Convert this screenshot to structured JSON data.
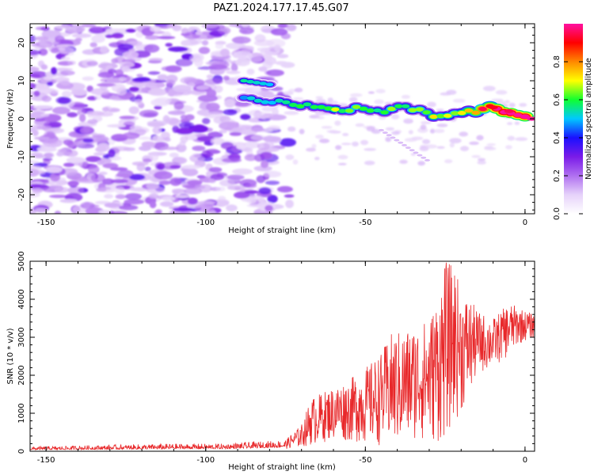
{
  "title": "PAZ1.2024.177.17.45.G07",
  "chart_data": [
    {
      "type": "heatmap",
      "xlabel": "Height of straight line (km)",
      "ylabel": "Frequency (Hz)",
      "xlim": [
        -155,
        3
      ],
      "ylim": [
        -25,
        25
      ],
      "xticks": [
        -150,
        -100,
        -50,
        0
      ],
      "yticks": [
        -20,
        -10,
        0,
        10,
        20
      ],
      "colorbar": {
        "label": "Normalized spectral amplitude",
        "range": [
          0,
          1
        ],
        "ticks": [
          "0.0",
          "0.2",
          "0.4",
          "0.6",
          "0.8"
        ],
        "tick_values": [
          0,
          0.2,
          0.4,
          0.6,
          0.8
        ],
        "colors": [
          "#ffffff",
          "#e6d2fa",
          "#b070f0",
          "#7a1be8",
          "#1a10ff",
          "#00c8ff",
          "#10ff30",
          "#ffff00",
          "#ff8800",
          "#ff0000",
          "#ff10a0"
        ]
      },
      "ridge": {
        "x": [
          -88,
          -80,
          -72,
          -65,
          -60,
          -55,
          -50,
          -45,
          -40,
          -35,
          -30,
          -25,
          -20,
          -15,
          -10,
          -5,
          -2,
          2
        ],
        "y": [
          5,
          4.5,
          4,
          3,
          2,
          2.5,
          3,
          2,
          3,
          2.5,
          1,
          0,
          1.5,
          2,
          3,
          2,
          0.5,
          0
        ],
        "amplitude": [
          0.35,
          0.38,
          0.42,
          0.48,
          0.5,
          0.46,
          0.5,
          0.45,
          0.48,
          0.5,
          0.55,
          0.5,
          0.55,
          0.7,
          0.85,
          0.9,
          0.95,
          1.0
        ]
      },
      "upper_branch": {
        "x": [
          -88,
          -80
        ],
        "y": [
          10,
          9
        ],
        "amplitude": [
          0.4,
          0.35
        ]
      }
    },
    {
      "type": "line",
      "xlabel": "Height of straight line (km)",
      "ylabel": "SNR (10 * v/v)",
      "xlim": [
        -155,
        3
      ],
      "ylim": [
        0,
        5000
      ],
      "xticks": [
        -150,
        -100,
        -50,
        0
      ],
      "yticks": [
        0,
        1000,
        2000,
        3000,
        4000,
        5000
      ],
      "color": "#e8282a",
      "envelope_x": [
        -155,
        -130,
        -110,
        -95,
        -85,
        -75,
        -70,
        -67,
        -60,
        -55,
        -50,
        -45,
        -42,
        -38,
        -35,
        -30,
        -27,
        -25,
        -22,
        -20,
        -17,
        -15,
        -10,
        -5,
        -2,
        0,
        3
      ],
      "envelope_max": [
        120,
        170,
        200,
        200,
        250,
        300,
        700,
        1400,
        1700,
        1900,
        2200,
        2600,
        3100,
        3200,
        3300,
        3500,
        4200,
        5000,
        4900,
        4200,
        4000,
        3700,
        3500,
        3900,
        3800,
        3700,
        3600
      ],
      "envelope_min": [
        20,
        20,
        30,
        30,
        40,
        60,
        100,
        150,
        300,
        250,
        200,
        150,
        120,
        150,
        300,
        250,
        200,
        300,
        800,
        1000,
        1500,
        2000,
        2200,
        2500,
        2800,
        2900,
        3000
      ]
    }
  ]
}
